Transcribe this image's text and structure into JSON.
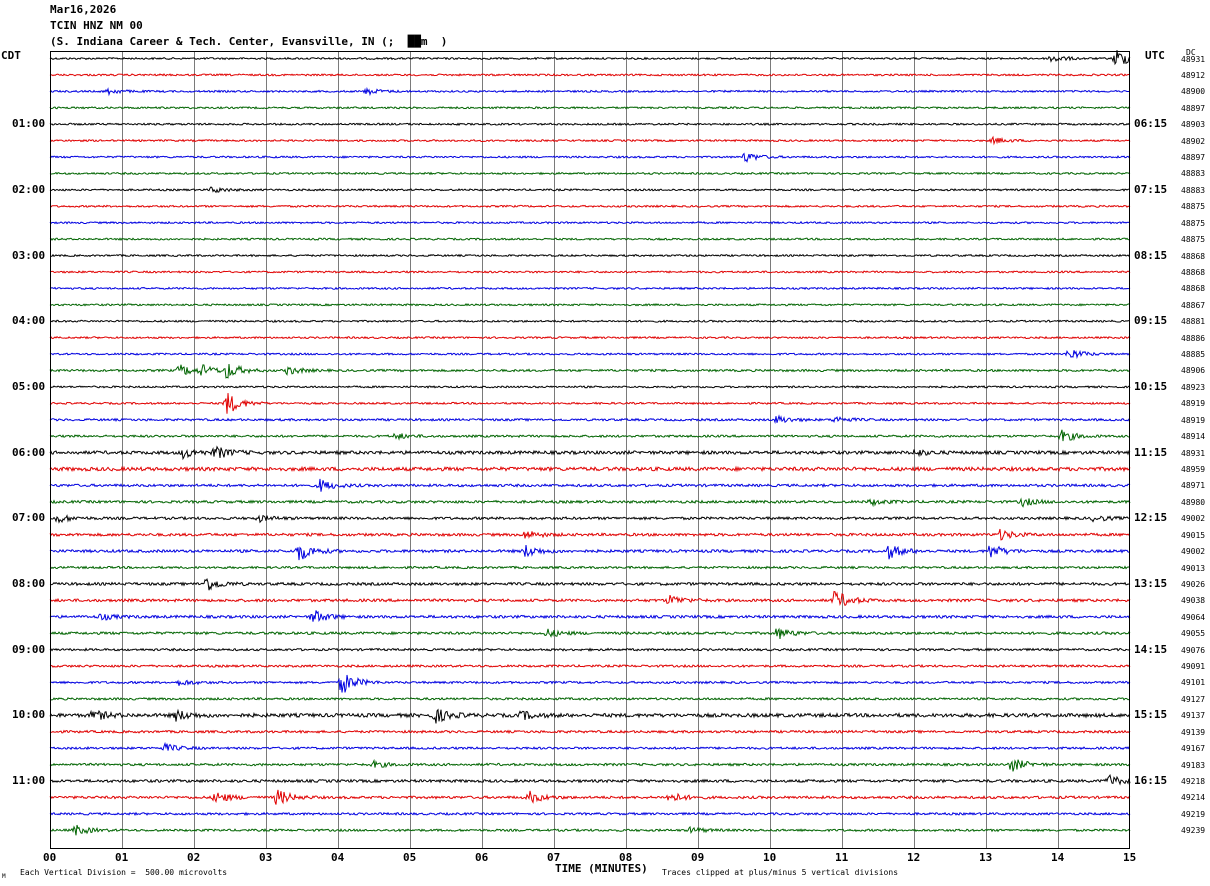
{
  "header": {
    "date": "Mar16,2026",
    "station": "TCIN HNZ NM 00",
    "location": "(S. Indiana Career & Tech. Center, Evansville, IN (;  ██m  )"
  },
  "chart_data": {
    "type": "line",
    "description": "helicorder seismogram, 48 traces of 15 minutes each",
    "left_axis_title": "CDT",
    "right_axis_title": "UTC",
    "corner_label": "DC",
    "xlabel": "TIME (MINUTES)",
    "x_ticks": [
      "00",
      "01",
      "02",
      "03",
      "04",
      "05",
      "06",
      "07",
      "08",
      "09",
      "10",
      "11",
      "12",
      "13",
      "14",
      "15"
    ],
    "xlim": [
      0,
      15
    ],
    "left_hour_labels": [
      "01:00",
      "02:00",
      "03:00",
      "04:00",
      "05:00",
      "06:00",
      "07:00",
      "08:00",
      "09:00",
      "10:00",
      "11:00"
    ],
    "right_hour_labels": [
      "06:15",
      "07:15",
      "08:15",
      "09:15",
      "10:15",
      "11:15",
      "12:15",
      "13:15",
      "14:15",
      "15:15",
      "16:15"
    ],
    "trace_colors": [
      "#000000",
      "#e00000",
      "#0000e0",
      "#006400"
    ],
    "dc_offsets": [
      "48931",
      "48912",
      "48900",
      "48897",
      "48903",
      "48902",
      "48897",
      "48883",
      "48883",
      "48875",
      "48875",
      "48875",
      "48868",
      "48868",
      "48868",
      "48867",
      "48881",
      "48886",
      "48885",
      "48906",
      "48923",
      "48919",
      "48919",
      "48914",
      "48931",
      "48959",
      "48971",
      "48980",
      "49002",
      "49015",
      "49002",
      "49013",
      "49026",
      "49038",
      "49064",
      "49055",
      "49076",
      "49091",
      "49101",
      "49127",
      "49137",
      "49139",
      "49167",
      "49183",
      "49218",
      "49214",
      "49219",
      "49239"
    ],
    "noise_levels": [
      1,
      1,
      1,
      1,
      1,
      1,
      1,
      1,
      1,
      1,
      1,
      1,
      1,
      1,
      1,
      1,
      1,
      1,
      1,
      1.2,
      1,
      1,
      1.2,
      1.2,
      1.8,
      2,
      1.4,
      1.4,
      1.4,
      1.5,
      1.5,
      1.2,
      1.5,
      1.5,
      1.5,
      1.4,
      1.2,
      1.2,
      1.2,
      1.2,
      2,
      1.3,
      1.2,
      1.3,
      1.5,
      1.4,
      1.2,
      1.2
    ],
    "events": [
      {
        "trace": 0,
        "minute": 14.8,
        "amp": 10
      },
      {
        "trace": 0,
        "minute": 13.9,
        "amp": 4
      },
      {
        "trace": 2,
        "minute": 0.8,
        "amp": 3
      },
      {
        "trace": 2,
        "minute": 4.4,
        "amp": 3
      },
      {
        "trace": 5,
        "minute": 13.1,
        "amp": 3
      },
      {
        "trace": 6,
        "minute": 9.65,
        "amp": 5
      },
      {
        "trace": 8,
        "minute": 2.25,
        "amp": 3
      },
      {
        "trace": 18,
        "minute": 14.15,
        "amp": 6
      },
      {
        "trace": 19,
        "minute": 1.8,
        "amp": 6
      },
      {
        "trace": 19,
        "minute": 2.1,
        "amp": 5
      },
      {
        "trace": 19,
        "minute": 2.45,
        "amp": 8
      },
      {
        "trace": 19,
        "minute": 3.3,
        "amp": 4
      },
      {
        "trace": 21,
        "minute": 2.45,
        "amp": 12
      },
      {
        "trace": 22,
        "minute": 10.1,
        "amp": 4
      },
      {
        "trace": 22,
        "minute": 10.9,
        "amp": 3
      },
      {
        "trace": 23,
        "minute": 14.05,
        "amp": 6
      },
      {
        "trace": 23,
        "minute": 4.8,
        "amp": 3
      },
      {
        "trace": 24,
        "minute": 1.85,
        "amp": 5
      },
      {
        "trace": 24,
        "minute": 2.3,
        "amp": 6
      },
      {
        "trace": 24,
        "minute": 12.0,
        "amp": 3
      },
      {
        "trace": 26,
        "minute": 3.75,
        "amp": 6
      },
      {
        "trace": 27,
        "minute": 11.4,
        "amp": 3
      },
      {
        "trace": 27,
        "minute": 13.5,
        "amp": 4
      },
      {
        "trace": 28,
        "minute": 0.1,
        "amp": 4
      },
      {
        "trace": 28,
        "minute": 2.9,
        "amp": 3
      },
      {
        "trace": 28,
        "minute": 14.5,
        "amp": 3
      },
      {
        "trace": 29,
        "minute": 6.6,
        "amp": 4
      },
      {
        "trace": 29,
        "minute": 13.2,
        "amp": 5
      },
      {
        "trace": 30,
        "minute": 3.45,
        "amp": 10
      },
      {
        "trace": 30,
        "minute": 6.6,
        "amp": 6
      },
      {
        "trace": 30,
        "minute": 11.65,
        "amp": 7
      },
      {
        "trace": 30,
        "minute": 13.05,
        "amp": 7
      },
      {
        "trace": 32,
        "minute": 2.15,
        "amp": 8
      },
      {
        "trace": 33,
        "minute": 10.9,
        "amp": 10
      },
      {
        "trace": 33,
        "minute": 8.6,
        "amp": 5
      },
      {
        "trace": 34,
        "minute": 3.65,
        "amp": 7
      },
      {
        "trace": 34,
        "minute": 0.7,
        "amp": 3
      },
      {
        "trace": 35,
        "minute": 10.1,
        "amp": 6
      },
      {
        "trace": 35,
        "minute": 6.9,
        "amp": 4
      },
      {
        "trace": 38,
        "minute": 4.05,
        "amp": 12
      },
      {
        "trace": 38,
        "minute": 1.8,
        "amp": 3
      },
      {
        "trace": 40,
        "minute": 0.6,
        "amp": 5
      },
      {
        "trace": 40,
        "minute": 1.75,
        "amp": 5
      },
      {
        "trace": 40,
        "minute": 5.35,
        "amp": 7
      },
      {
        "trace": 40,
        "minute": 6.55,
        "amp": 4
      },
      {
        "trace": 42,
        "minute": 1.6,
        "amp": 4
      },
      {
        "trace": 43,
        "minute": 13.35,
        "amp": 7
      },
      {
        "trace": 43,
        "minute": 4.5,
        "amp": 3
      },
      {
        "trace": 44,
        "minute": 14.7,
        "amp": 6
      },
      {
        "trace": 45,
        "minute": 2.3,
        "amp": 6
      },
      {
        "trace": 45,
        "minute": 3.15,
        "amp": 8
      },
      {
        "trace": 45,
        "minute": 6.65,
        "amp": 6
      },
      {
        "trace": 45,
        "minute": 8.6,
        "amp": 5
      },
      {
        "trace": 47,
        "minute": 0.35,
        "amp": 5
      },
      {
        "trace": 47,
        "minute": 8.9,
        "amp": 3
      }
    ]
  },
  "footer": {
    "vertical_division": "Each Vertical Division =  500.00 microvolts",
    "clip_note": "Traces clipped at plus/minus 5 vertical divisions",
    "corner_mark": "M"
  }
}
